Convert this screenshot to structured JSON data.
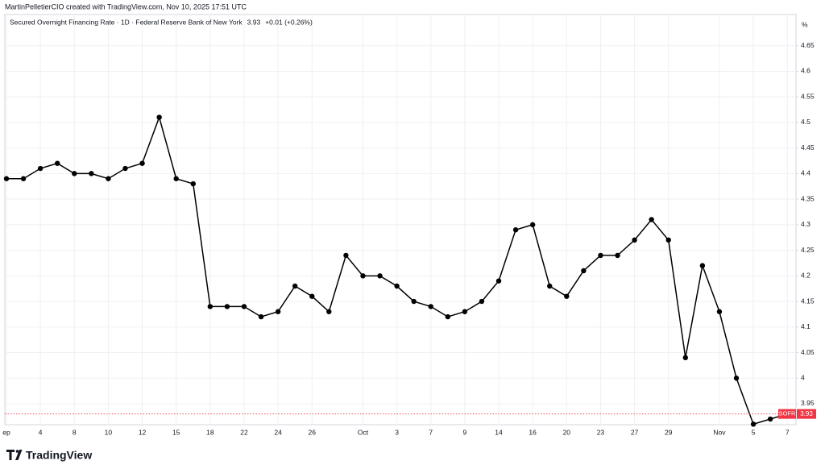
{
  "chart_data": {
    "type": "line",
    "caption": "MartinPelletierCIO created with TradingView.com, Nov 10, 2025 17:51 UTC",
    "title": "Secured Overnight Financing Rate · 1D · Federal Reserve Bank of New York",
    "legend_value": 3.93,
    "legend_change": "+0.01 (+0.26%)",
    "y_unit": "%",
    "brand": "TradingView",
    "categories": [
      "ep",
      null,
      "4",
      null,
      "8",
      null,
      "10",
      null,
      "12",
      null,
      "15",
      null,
      "18",
      null,
      "22",
      null,
      "24",
      null,
      "26",
      null,
      null,
      "Oct",
      null,
      "3",
      null,
      "7",
      null,
      "9",
      null,
      "14",
      null,
      "16",
      null,
      "20",
      null,
      "23",
      null,
      "27",
      null,
      "29",
      null,
      null,
      "Nov",
      null,
      "5",
      null,
      "7"
    ],
    "series": [
      {
        "name": "SOFR",
        "color": "#000000",
        "values": [
          4.39,
          4.39,
          4.41,
          4.42,
          4.4,
          4.4,
          4.39,
          4.41,
          4.42,
          4.51,
          4.39,
          4.38,
          4.14,
          4.14,
          4.14,
          4.12,
          4.13,
          4.18,
          4.16,
          4.13,
          4.24,
          4.2,
          4.2,
          4.18,
          4.15,
          4.14,
          4.12,
          4.13,
          4.15,
          4.19,
          4.29,
          4.3,
          4.18,
          4.16,
          4.21,
          4.24,
          4.24,
          4.27,
          4.31,
          4.27,
          4.04,
          4.22,
          4.13,
          4.0,
          3.91,
          3.92,
          3.93
        ]
      }
    ],
    "last_value": 3.93,
    "last_color": "#f23645",
    "ylim": [
      3.909,
      4.711
    ],
    "yticks": [
      3.95,
      4,
      4.05,
      4.1,
      4.15,
      4.2,
      4.25,
      4.3,
      4.35,
      4.4,
      4.45,
      4.5,
      4.55,
      4.6,
      4.65
    ],
    "grid": true
  }
}
